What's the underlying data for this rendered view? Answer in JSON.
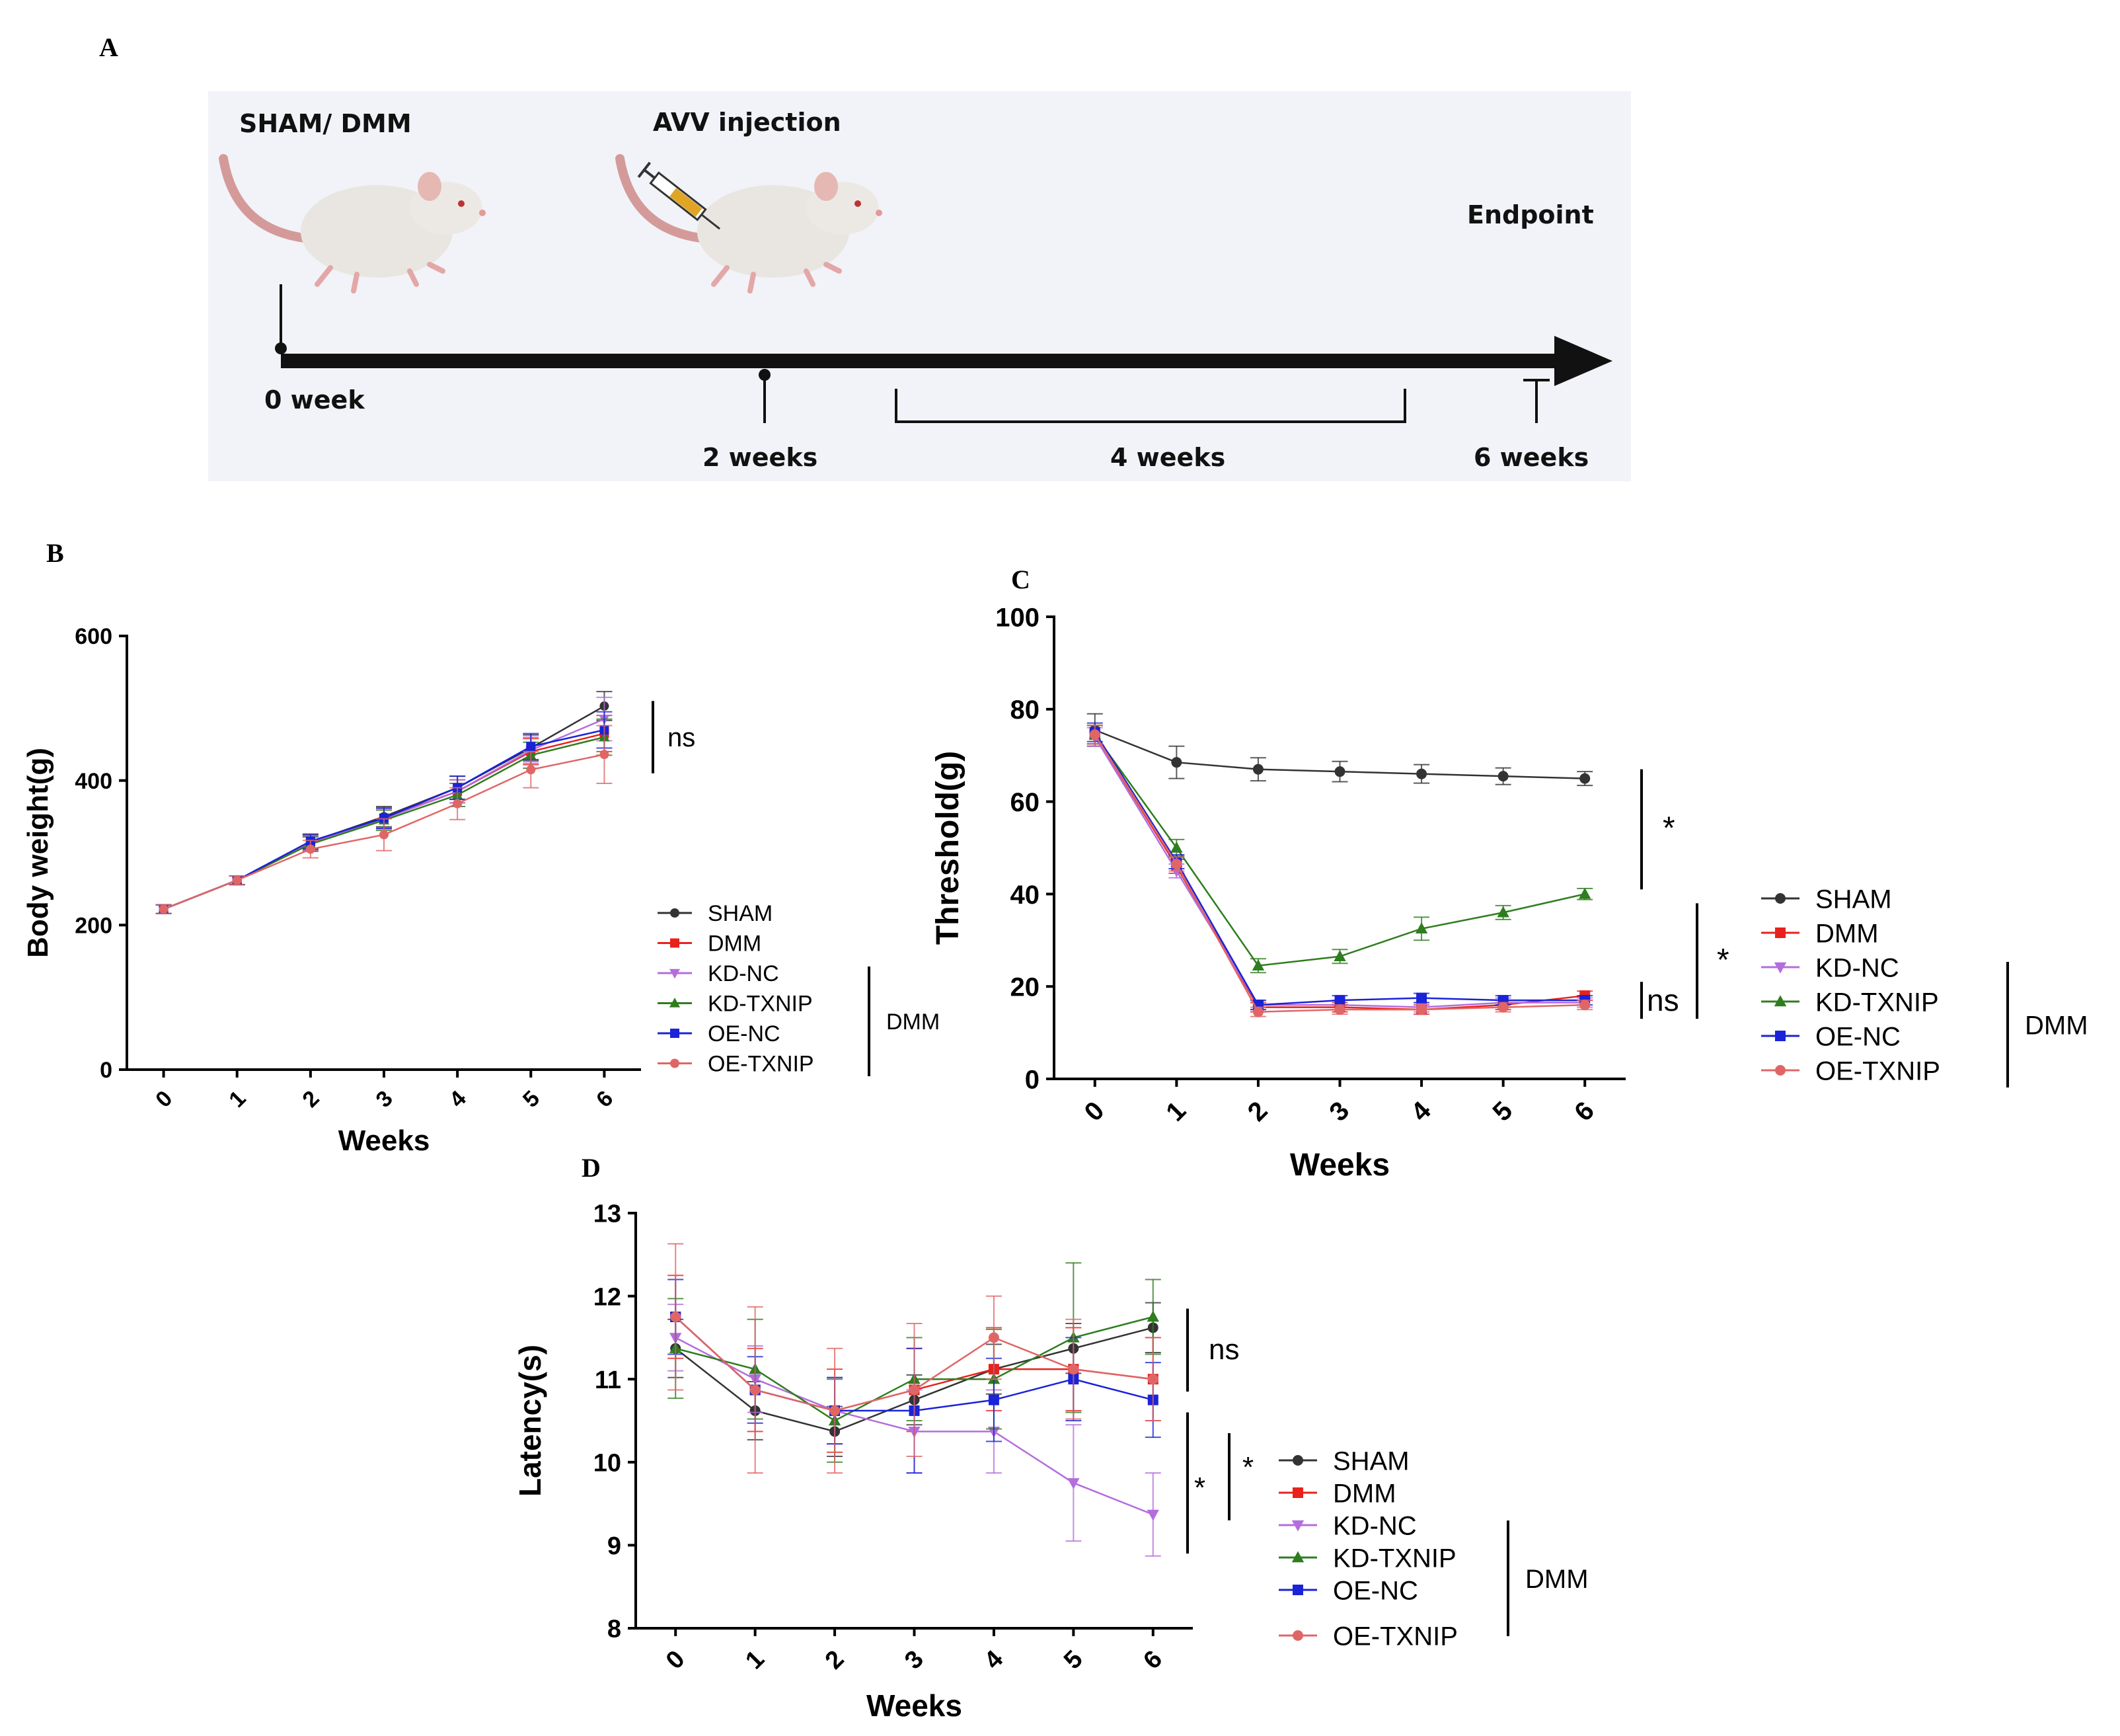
{
  "panel_labels": {
    "a": "A",
    "b": "B",
    "c": "C",
    "d": "D"
  },
  "timeline": {
    "step1": "SHAM/ DMM",
    "step2": "AVV injection",
    "endpoint": "Endpoint",
    "t0": "0 week",
    "t2": "2 weeks",
    "span": "4 weeks",
    "t6": "6 weeks",
    "icons": [
      "rat-icon",
      "rat-with-syringe-icon"
    ]
  },
  "chart_data": [
    {
      "id": "B",
      "type": "line",
      "ylabel": "Body weight(g)",
      "xlabel": "Weeks",
      "x": [
        0,
        1,
        2,
        3,
        4,
        5,
        6
      ],
      "ylim": [
        0,
        600
      ],
      "yticks": [
        0,
        200,
        400,
        600
      ],
      "series": [
        {
          "name": "SHAM",
          "color": "#333333",
          "marker": "circle",
          "values": [
            222,
            262,
            315,
            350,
            390,
            445,
            503
          ],
          "err": [
            6,
            6,
            10,
            14,
            16,
            18,
            20
          ]
        },
        {
          "name": "DMM",
          "color": "#e8211d",
          "marker": "square",
          "values": [
            222,
            262,
            314,
            348,
            385,
            440,
            465
          ],
          "err": [
            6,
            6,
            10,
            14,
            16,
            18,
            25
          ]
        },
        {
          "name": "KD-NC",
          "color": "#b46ddd",
          "marker": "tri-down",
          "values": [
            222,
            262,
            313,
            347,
            385,
            442,
            485
          ],
          "err": [
            6,
            6,
            10,
            14,
            16,
            18,
            30
          ]
        },
        {
          "name": "KD-TXNIP",
          "color": "#2e7d1e",
          "marker": "tri-up",
          "values": [
            222,
            262,
            312,
            345,
            380,
            435,
            460
          ],
          "err": [
            6,
            6,
            10,
            14,
            16,
            18,
            25
          ]
        },
        {
          "name": "OE-NC",
          "color": "#1a23d8",
          "marker": "square",
          "values": [
            222,
            262,
            316,
            348,
            390,
            447,
            470
          ],
          "err": [
            6,
            6,
            10,
            14,
            16,
            18,
            25
          ]
        },
        {
          "name": "OE-TXNIP",
          "color": "#e06666",
          "marker": "circle",
          "values": [
            222,
            262,
            305,
            325,
            368,
            415,
            436
          ],
          "err": [
            6,
            6,
            12,
            22,
            22,
            25,
            40
          ]
        }
      ],
      "annotations": [
        {
          "text": "ns",
          "between": [
            410,
            510
          ]
        }
      ],
      "group_label": "DMM"
    },
    {
      "id": "C",
      "type": "line",
      "ylabel": "Threshold(g)",
      "xlabel": "Weeks",
      "x": [
        0,
        1,
        2,
        3,
        4,
        5,
        6
      ],
      "ylim": [
        0,
        100
      ],
      "yticks": [
        0,
        20,
        40,
        60,
        80,
        100
      ],
      "series": [
        {
          "name": "SHAM",
          "color": "#333333",
          "marker": "circle",
          "values": [
            75.5,
            68.5,
            67,
            66.5,
            66,
            65.5,
            65
          ],
          "err": [
            3.5,
            3.5,
            2.5,
            2.2,
            2,
            1.8,
            1.5
          ]
        },
        {
          "name": "DMM",
          "color": "#e8211d",
          "marker": "square",
          "values": [
            74.5,
            46,
            15.5,
            15.5,
            15,
            16,
            18
          ],
          "err": [
            2,
            1.5,
            1,
            1,
            1,
            1,
            1
          ]
        },
        {
          "name": "KD-NC",
          "color": "#b46ddd",
          "marker": "tri-down",
          "values": [
            74,
            45,
            16,
            16,
            15.5,
            16.5,
            16.5
          ],
          "err": [
            2,
            1.5,
            1,
            1,
            1,
            1,
            1
          ]
        },
        {
          "name": "KD-TXNIP",
          "color": "#2e7d1e",
          "marker": "tri-up",
          "values": [
            74.5,
            50,
            24.5,
            26.5,
            32.5,
            36,
            40
          ],
          "err": [
            2,
            1.8,
            1.5,
            1.5,
            2.5,
            1.5,
            1.2
          ]
        },
        {
          "name": "OE-NC",
          "color": "#1a23d8",
          "marker": "square",
          "values": [
            75,
            47,
            16,
            17,
            17.5,
            17,
            17
          ],
          "err": [
            2,
            1.5,
            1,
            1,
            1,
            1,
            1
          ]
        },
        {
          "name": "OE-TXNIP",
          "color": "#e06666",
          "marker": "circle",
          "values": [
            74.5,
            46.5,
            14.5,
            15,
            15,
            15.5,
            16
          ],
          "err": [
            2,
            1.5,
            1,
            1,
            1,
            1,
            1
          ]
        }
      ],
      "annotations": [
        {
          "text": "*",
          "between": [
            41,
            67
          ]
        },
        {
          "text": "*",
          "between": [
            13,
            38
          ]
        },
        {
          "text": "ns",
          "between": [
            13,
            21
          ]
        }
      ],
      "group_label": "DMM"
    },
    {
      "id": "D",
      "type": "line",
      "ylabel": "Latency(s)",
      "xlabel": "Weeks",
      "x": [
        0,
        1,
        2,
        3,
        4,
        5,
        6
      ],
      "ylim": [
        8,
        13
      ],
      "yticks": [
        8,
        9,
        10,
        11,
        12,
        13
      ],
      "series": [
        {
          "name": "SHAM",
          "color": "#333333",
          "marker": "circle",
          "values": [
            11.37,
            10.62,
            10.37,
            10.75,
            11.12,
            11.37,
            11.62
          ],
          "err": [
            0.35,
            0.35,
            0.3,
            0.3,
            0.3,
            0.3,
            0.3
          ]
        },
        {
          "name": "DMM",
          "color": "#e8211d",
          "marker": "square",
          "values": [
            11.75,
            10.87,
            10.62,
            10.87,
            11.12,
            11.12,
            11.0
          ],
          "err": [
            0.5,
            0.5,
            0.5,
            0.5,
            0.5,
            0.5,
            0.5
          ]
        },
        {
          "name": "KD-NC",
          "color": "#b46ddd",
          "marker": "tri-down",
          "values": [
            11.5,
            11.0,
            10.62,
            10.37,
            10.37,
            9.75,
            9.37
          ],
          "err": [
            0.4,
            0.4,
            0.4,
            0.5,
            0.5,
            0.7,
            0.5
          ]
        },
        {
          "name": "KD-TXNIP",
          "color": "#2e7d1e",
          "marker": "tri-up",
          "values": [
            11.37,
            11.12,
            10.5,
            11.0,
            11.0,
            11.5,
            11.75
          ],
          "err": [
            0.6,
            0.6,
            0.5,
            0.5,
            0.6,
            0.9,
            0.45
          ]
        },
        {
          "name": "OE-NC",
          "color": "#1a23d8",
          "marker": "square",
          "values": [
            11.75,
            10.87,
            10.62,
            10.62,
            10.75,
            11.0,
            10.75
          ],
          "err": [
            0.45,
            0.4,
            0.4,
            0.75,
            0.5,
            0.5,
            0.45
          ]
        },
        {
          "name": "OE-TXNIP",
          "color": "#e06666",
          "marker": "circle",
          "values": [
            11.75,
            10.87,
            10.62,
            10.87,
            11.5,
            11.12,
            11.0
          ],
          "err": [
            0.88,
            1.0,
            0.75,
            0.8,
            0.5,
            0.6,
            0.5
          ]
        }
      ],
      "annotations": [
        {
          "text": "ns",
          "between": [
            10.85,
            11.85
          ]
        },
        {
          "text": "*",
          "between": [
            8.9,
            10.6
          ]
        },
        {
          "text": "*",
          "between": [
            9.3,
            10.35
          ]
        }
      ],
      "group_label": "DMM"
    }
  ]
}
